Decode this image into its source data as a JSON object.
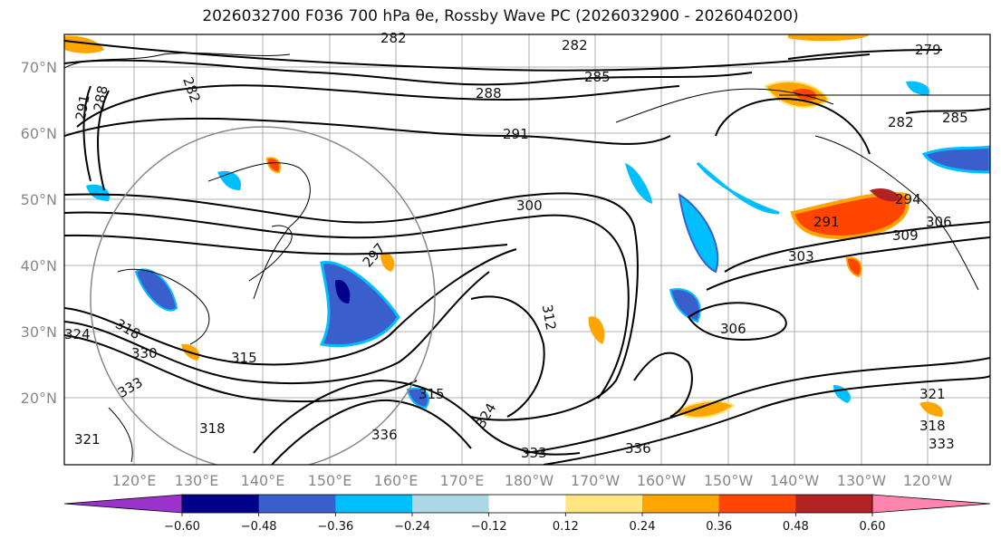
{
  "title": "2026032700 F036 700 hPa θe, Rossby Wave PC (2026032900 - 2026040200)",
  "lat_labels": [
    "70°N",
    "60°N",
    "50°N",
    "40°N",
    "30°N",
    "20°N"
  ],
  "lon_labels": [
    "120°E",
    "130°E",
    "140°E",
    "150°E",
    "160°E",
    "170°E",
    "180°W",
    "170°W",
    "160°W",
    "150°W",
    "140°W",
    "130°W",
    "120°W"
  ],
  "contour_labels": [
    "282",
    "282",
    "282",
    "279",
    "285",
    "288",
    "291",
    "288",
    "291",
    "282",
    "285",
    "300",
    "297",
    "294",
    "291",
    "306",
    "309",
    "303",
    "312",
    "306",
    "315",
    "330",
    "318",
    "324",
    "315",
    "336",
    "318",
    "321",
    "333",
    "336",
    "333",
    "321",
    "318",
    "333",
    "324"
  ],
  "colorbar": {
    "ticks": [
      "−0.60",
      "−0.48",
      "−0.36",
      "−0.24",
      "−0.12",
      "0.12",
      "0.24",
      "0.36",
      "0.48",
      "0.60"
    ],
    "colors": [
      "#9933cc",
      "#00008b",
      "#3a5fcd",
      "#00bfff",
      "#add8e6",
      "#ffffff",
      "#ffe680",
      "#ffa500",
      "#ff4500",
      "#b22222",
      "#ff85b0"
    ]
  }
}
